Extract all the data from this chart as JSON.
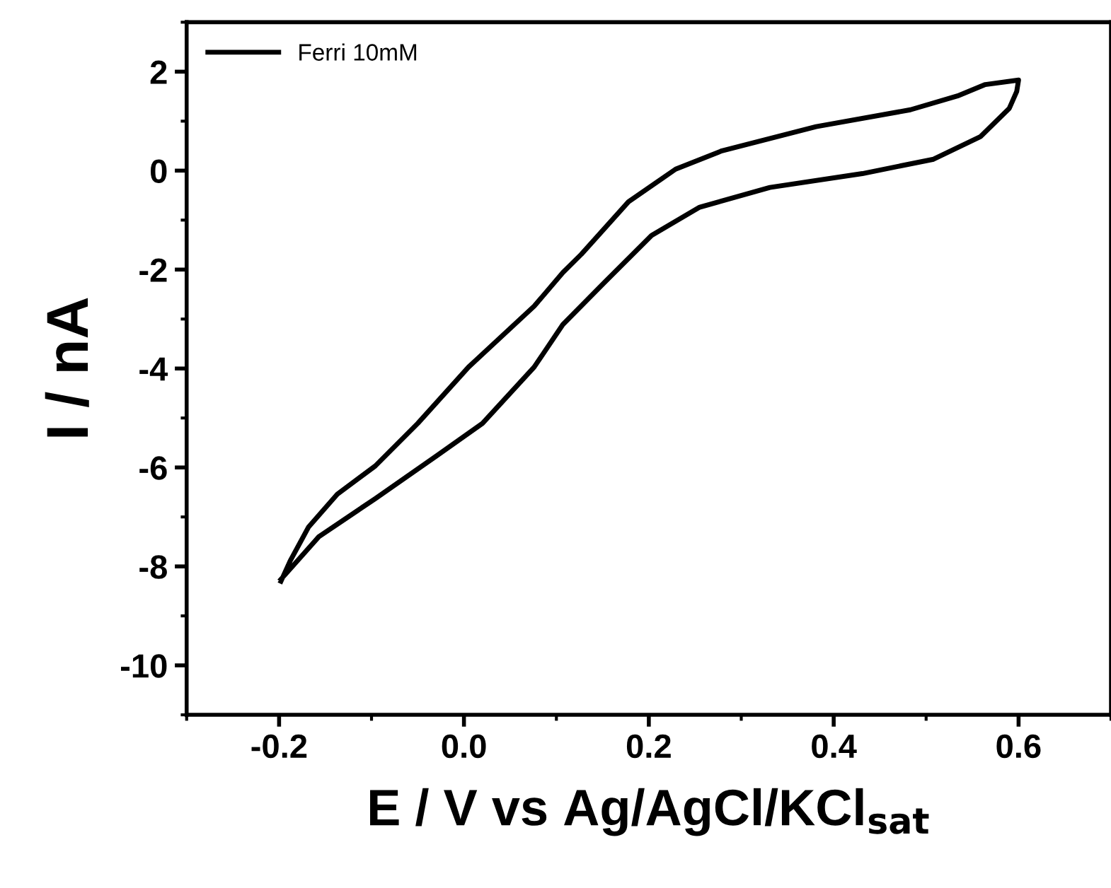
{
  "chart_data": {
    "type": "line",
    "xlabel": "E / V vs Ag/AgCl/KCl$_{sat}$",
    "ylabel": "I / nA",
    "xlim": [
      -0.3,
      0.7
    ],
    "ylim": [
      -11,
      3
    ],
    "xticks": [
      -0.2,
      {
        "value": 0,
        "label": "0.0"
      },
      0.2,
      0.4,
      0.6
    ],
    "yticks": [
      -10,
      -8,
      -6,
      -4,
      -2,
      0,
      2
    ],
    "grid": false,
    "legend": "top left",
    "marker": "none",
    "line_style": "solid",
    "series": [
      {
        "name": "Ferri 10mM",
        "color": "#000000",
        "x": [
          -0.198,
          -0.188,
          -0.168,
          -0.137,
          -0.096,
          -0.05,
          0.005,
          0.076,
          0.107,
          0.127,
          0.178,
          0.229,
          0.279,
          0.381,
          0.483,
          0.534,
          0.564,
          0.6,
          0.598,
          0.59,
          0.559,
          0.508,
          0.431,
          0.331,
          0.255,
          0.203,
          0.152,
          0.107,
          0.076,
          0.02,
          -0.03,
          -0.096,
          -0.157,
          -0.198
        ],
        "values": [
          -8.3,
          -7.89,
          -7.2,
          -6.54,
          -5.97,
          -5.11,
          -3.97,
          -2.74,
          -2.06,
          -1.69,
          -0.63,
          0.03,
          0.4,
          0.89,
          1.23,
          1.51,
          1.74,
          1.83,
          1.6,
          1.26,
          0.69,
          0.23,
          -0.06,
          -0.34,
          -0.74,
          -1.31,
          -2.26,
          -3.11,
          -3.97,
          -5.11,
          -5.77,
          -6.63,
          -7.4,
          -8.26
        ]
      }
    ]
  }
}
